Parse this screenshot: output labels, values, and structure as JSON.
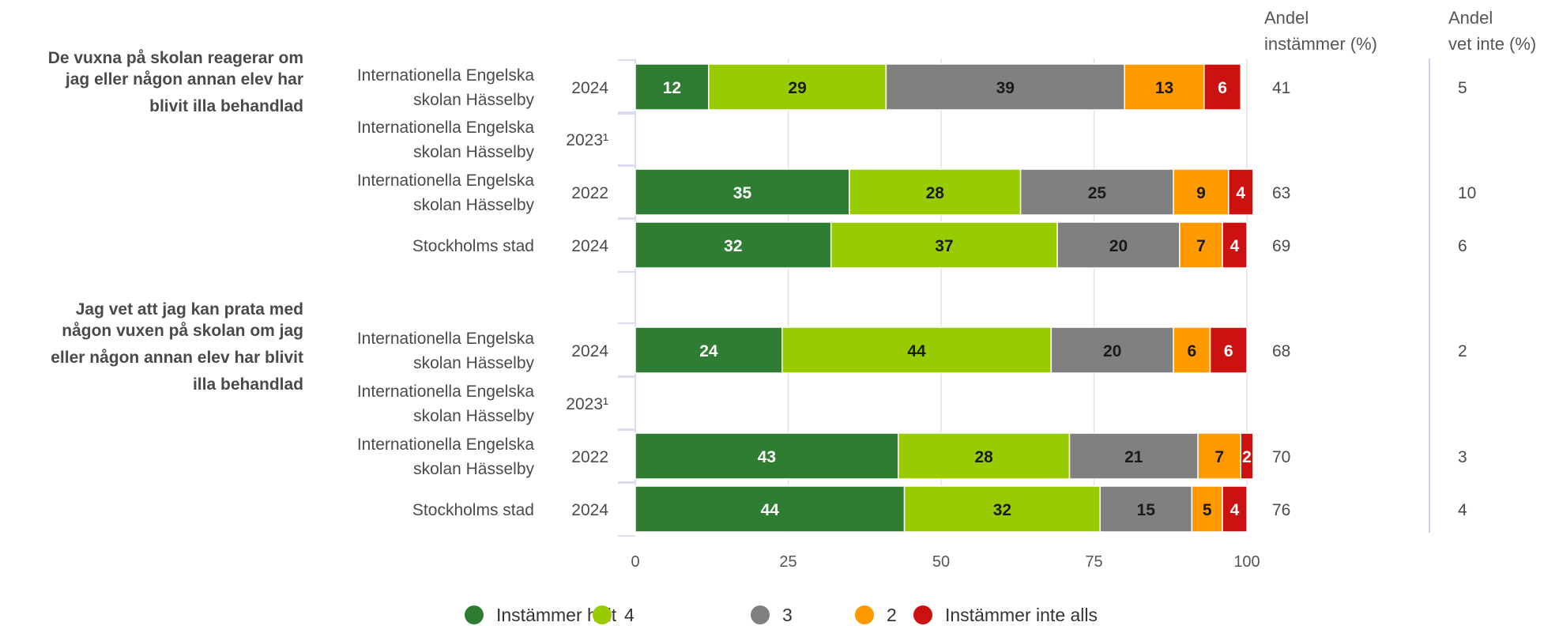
{
  "chart_data": {
    "type": "bar",
    "orientation": "horizontal",
    "stacked": true,
    "xlim": [
      0,
      100
    ],
    "xticks": [
      0,
      25,
      50,
      75,
      100
    ],
    "grid": true,
    "legend_position": "bottom",
    "column_headers": [
      "Andel instämmer (%)",
      "Andel vet inte (%)"
    ],
    "segments": [
      {
        "name": "Instämmer helt",
        "color": "#2e7d32",
        "text_color": "#ffffff"
      },
      {
        "name": "4",
        "color": "#99cc00",
        "text_color": "#1a1a1a"
      },
      {
        "name": "3",
        "color": "#808080",
        "text_color": "#1a1a1a"
      },
      {
        "name": "2",
        "color": "#ff9900",
        "text_color": "#1a1a1a"
      },
      {
        "name": "Instämmer inte alls",
        "color": "#cc1111",
        "text_color": "#ffffff"
      }
    ],
    "groups": [
      {
        "question_lines": [
          "De vuxna på skolan reagerar om",
          "jag eller någon annan elev har",
          "blivit illa behandlad"
        ],
        "rows": [
          {
            "unit": [
              "Internationella Engelska",
              "skolan Hässelby"
            ],
            "year": "2024",
            "values": [
              12,
              29,
              39,
              13,
              6
            ],
            "instammer": "41",
            "vet_inte": "5"
          },
          {
            "unit": [
              "Internationella Engelska",
              "skolan Hässelby"
            ],
            "year": "2023¹",
            "values": null,
            "instammer": "",
            "vet_inte": ""
          },
          {
            "unit": [
              "Internationella Engelska",
              "skolan Hässelby"
            ],
            "year": "2022",
            "values": [
              35,
              28,
              25,
              9,
              4
            ],
            "instammer": "63",
            "vet_inte": "10"
          },
          {
            "unit": [
              "Stockholms stad"
            ],
            "year": "2024",
            "values": [
              32,
              37,
              20,
              7,
              4
            ],
            "instammer": "69",
            "vet_inte": "6"
          }
        ]
      },
      {
        "question_lines": [
          "Jag vet att jag kan prata med",
          "någon vuxen på skolan om jag",
          "eller någon annan elev har blivit",
          "illa behandlad"
        ],
        "rows": [
          {
            "unit": [
              "Internationella Engelska",
              "skolan Hässelby"
            ],
            "year": "2024",
            "values": [
              24,
              44,
              20,
              6,
              6
            ],
            "instammer": "68",
            "vet_inte": "2"
          },
          {
            "unit": [
              "Internationella Engelska",
              "skolan Hässelby"
            ],
            "year": "2023¹",
            "values": null,
            "instammer": "",
            "vet_inte": ""
          },
          {
            "unit": [
              "Internationella Engelska",
              "skolan Hässelby"
            ],
            "year": "2022",
            "values": [
              43,
              28,
              21,
              7,
              2
            ],
            "instammer": "70",
            "vet_inte": "3"
          },
          {
            "unit": [
              "Stockholms stad"
            ],
            "year": "2024",
            "values": [
              44,
              32,
              15,
              5,
              4
            ],
            "instammer": "76",
            "vet_inte": "4"
          }
        ]
      }
    ]
  }
}
